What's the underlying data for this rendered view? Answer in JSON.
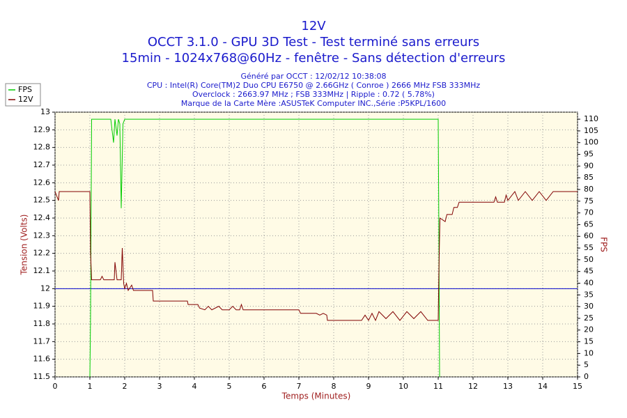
{
  "chart_data": {
    "type": "line",
    "title": [
      "12V",
      "OCCT 3.1.0 - GPU 3D Test - Test terminé sans erreurs",
      "15min - 1024x768@60Hz - fenêtre - Sans détection d'erreurs"
    ],
    "subtitle": [
      "Généré par OCCT : 12/02/12 10:38:08",
      "CPU : Intel(R) Core(TM)2 Duo CPU E6750 @ 2.66GHz ( Conroe ) 2666 MHz FSB 333MHz",
      "Overclock : 2663.97 MHz ; FSB 333MHz | Ripple : 0.72 ( 5.78%)",
      "Marque de la Carte Mère :ASUSTeK Computer INC.,Série :P5KPL/1600"
    ],
    "x_label": "Temps (Minutes)",
    "y_label": "Tension (Volts)",
    "y2_label": "FPS",
    "xlim": [
      0,
      15
    ],
    "xticks": [
      0,
      1,
      2,
      3,
      4,
      5,
      6,
      7,
      8,
      9,
      10,
      11,
      12,
      13,
      14,
      15
    ],
    "ylim": [
      11.5,
      13
    ],
    "yticks": [
      11.5,
      11.6,
      11.7,
      11.8,
      11.9,
      12,
      12.1,
      12.2,
      12.3,
      12.4,
      12.5,
      12.6,
      12.7,
      12.8,
      12.9,
      13
    ],
    "y2lim": [
      0,
      113
    ],
    "y2ticks": [
      0,
      5,
      10,
      15,
      20,
      25,
      30,
      35,
      40,
      45,
      50,
      55,
      60,
      65,
      70,
      75,
      80,
      85,
      90,
      95,
      100,
      105,
      110
    ],
    "grid": true,
    "reference_line": {
      "value": 12,
      "color": "#0000cc"
    },
    "legend": "top-left",
    "series": [
      {
        "name": "FPS",
        "color": "#00cc00",
        "axis": "y2",
        "x": [
          1.0,
          1.02,
          1.05,
          1.1,
          1.6,
          1.68,
          1.72,
          1.78,
          1.82,
          1.86,
          1.9,
          1.95,
          2.0,
          11.0,
          11.02,
          11.04
        ],
        "values": [
          0,
          26,
          110,
          110,
          110,
          100,
          110,
          103,
          110,
          108,
          72,
          108,
          110,
          110,
          60,
          0
        ]
      },
      {
        "name": "12V",
        "color": "#800000",
        "x": [
          0,
          0.1,
          0.12,
          1.0,
          1.02,
          1.05,
          1.3,
          1.35,
          1.4,
          1.7,
          1.72,
          1.78,
          1.9,
          1.93,
          1.97,
          2.0,
          2.05,
          2.1,
          2.2,
          2.25,
          2.8,
          2.82,
          3.8,
          3.82,
          4.1,
          4.15,
          4.3,
          4.4,
          4.5,
          4.7,
          4.8,
          5.0,
          5.1,
          5.2,
          5.3,
          5.35,
          5.4,
          7.0,
          7.05,
          7.5,
          7.6,
          7.7,
          7.8,
          7.82,
          8.8,
          8.9,
          9.0,
          9.1,
          9.2,
          9.3,
          9.5,
          9.7,
          9.9,
          10.1,
          10.3,
          10.5,
          10.7,
          11.0,
          11.02,
          11.05,
          11.2,
          11.25,
          11.4,
          11.45,
          11.55,
          11.6,
          12.6,
          12.65,
          12.7,
          12.9,
          12.95,
          13.0,
          13.2,
          13.3,
          13.5,
          13.7,
          13.9,
          14.1,
          14.3,
          15
        ],
        "values": [
          12.55,
          12.5,
          12.55,
          12.55,
          12.2,
          12.05,
          12.05,
          12.07,
          12.05,
          12.05,
          12.15,
          12.05,
          12.05,
          12.23,
          12.03,
          12.0,
          12.03,
          11.99,
          12.02,
          11.99,
          11.99,
          11.93,
          11.93,
          11.91,
          11.91,
          11.89,
          11.88,
          11.9,
          11.88,
          11.9,
          11.88,
          11.88,
          11.9,
          11.88,
          11.88,
          11.91,
          11.88,
          11.88,
          11.86,
          11.86,
          11.85,
          11.86,
          11.85,
          11.82,
          11.82,
          11.85,
          11.82,
          11.86,
          11.82,
          11.87,
          11.83,
          11.87,
          11.82,
          11.87,
          11.83,
          11.87,
          11.82,
          11.82,
          12.1,
          12.4,
          12.38,
          12.42,
          12.42,
          12.46,
          12.46,
          12.49,
          12.49,
          12.52,
          12.49,
          12.49,
          12.53,
          12.5,
          12.55,
          12.5,
          12.55,
          12.5,
          12.55,
          12.5,
          12.55,
          12.55
        ]
      }
    ]
  }
}
